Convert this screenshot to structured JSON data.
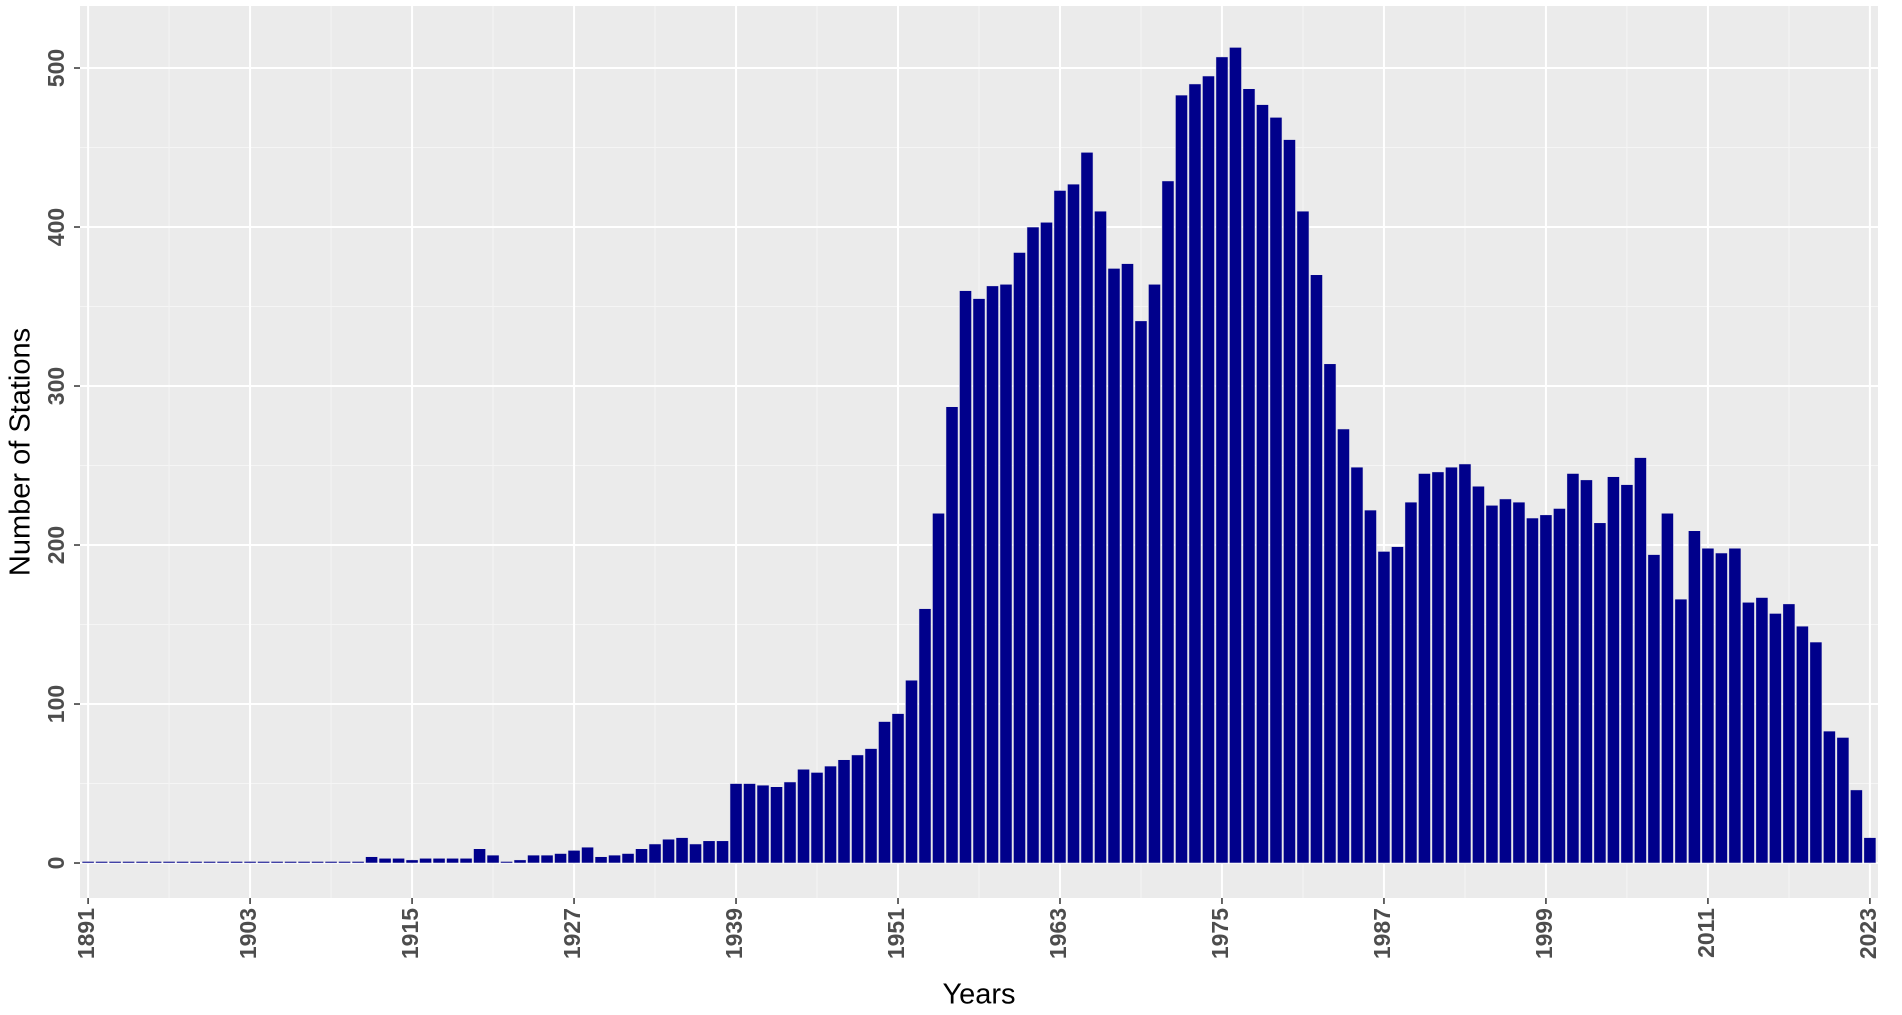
{
  "chart_data": {
    "type": "bar",
    "xlabel": "Years",
    "ylabel": "Number of Stations",
    "x": [
      1891,
      1892,
      1893,
      1894,
      1895,
      1896,
      1897,
      1898,
      1899,
      1900,
      1901,
      1902,
      1903,
      1904,
      1905,
      1906,
      1907,
      1908,
      1909,
      1910,
      1911,
      1912,
      1913,
      1914,
      1915,
      1916,
      1917,
      1918,
      1919,
      1920,
      1921,
      1922,
      1923,
      1924,
      1925,
      1926,
      1927,
      1928,
      1929,
      1930,
      1931,
      1932,
      1933,
      1934,
      1935,
      1936,
      1937,
      1938,
      1939,
      1940,
      1941,
      1942,
      1943,
      1944,
      1945,
      1946,
      1947,
      1948,
      1949,
      1950,
      1951,
      1952,
      1953,
      1954,
      1955,
      1956,
      1957,
      1958,
      1959,
      1960,
      1961,
      1962,
      1963,
      1964,
      1965,
      1966,
      1967,
      1968,
      1969,
      1970,
      1971,
      1972,
      1973,
      1974,
      1975,
      1976,
      1977,
      1978,
      1979,
      1980,
      1981,
      1982,
      1983,
      1984,
      1985,
      1986,
      1987,
      1988,
      1989,
      1990,
      1991,
      1992,
      1993,
      1994,
      1995,
      1996,
      1997,
      1998,
      1999,
      2000,
      2001,
      2002,
      2003,
      2004,
      2005,
      2006,
      2007,
      2008,
      2009,
      2010,
      2011,
      2012,
      2013,
      2014,
      2015,
      2016,
      2017,
      2018,
      2019,
      2020,
      2021,
      2022,
      2023
    ],
    "values": [
      1,
      1,
      1,
      1,
      1,
      1,
      1,
      1,
      1,
      1,
      1,
      1,
      1,
      1,
      1,
      1,
      1,
      1,
      1,
      1,
      1,
      4,
      3,
      3,
      2,
      3,
      3,
      3,
      3,
      9,
      5,
      1,
      2,
      5,
      5,
      6,
      8,
      10,
      4,
      5,
      6,
      9,
      12,
      15,
      16,
      12,
      14,
      14,
      50,
      50,
      49,
      48,
      51,
      59,
      57,
      61,
      65,
      68,
      72,
      89,
      94,
      115,
      160,
      220,
      287,
      360,
      355,
      363,
      364,
      384,
      400,
      403,
      423,
      427,
      447,
      410,
      374,
      377,
      341,
      364,
      429,
      483,
      490,
      495,
      507,
      513,
      487,
      477,
      469,
      455,
      410,
      370,
      314,
      273,
      249,
      222,
      196,
      199,
      227,
      245,
      246,
      249,
      251,
      237,
      225,
      229,
      227,
      217,
      219,
      223,
      245,
      241,
      214,
      243,
      238,
      255,
      194,
      220,
      166,
      209,
      198,
      195,
      198,
      164,
      167,
      157,
      163,
      149,
      139,
      83,
      79,
      46,
      16
    ],
    "color": "#00008B",
    "xlim": [
      1890.4,
      2023.6
    ],
    "xticks": [
      1891,
      1903,
      1915,
      1927,
      1939,
      1951,
      1963,
      1975,
      1987,
      1999,
      2011,
      2023
    ],
    "ylim": [
      -22,
      539
    ],
    "yticks": [
      0,
      100,
      200,
      300,
      400,
      500
    ],
    "grid": true
  }
}
